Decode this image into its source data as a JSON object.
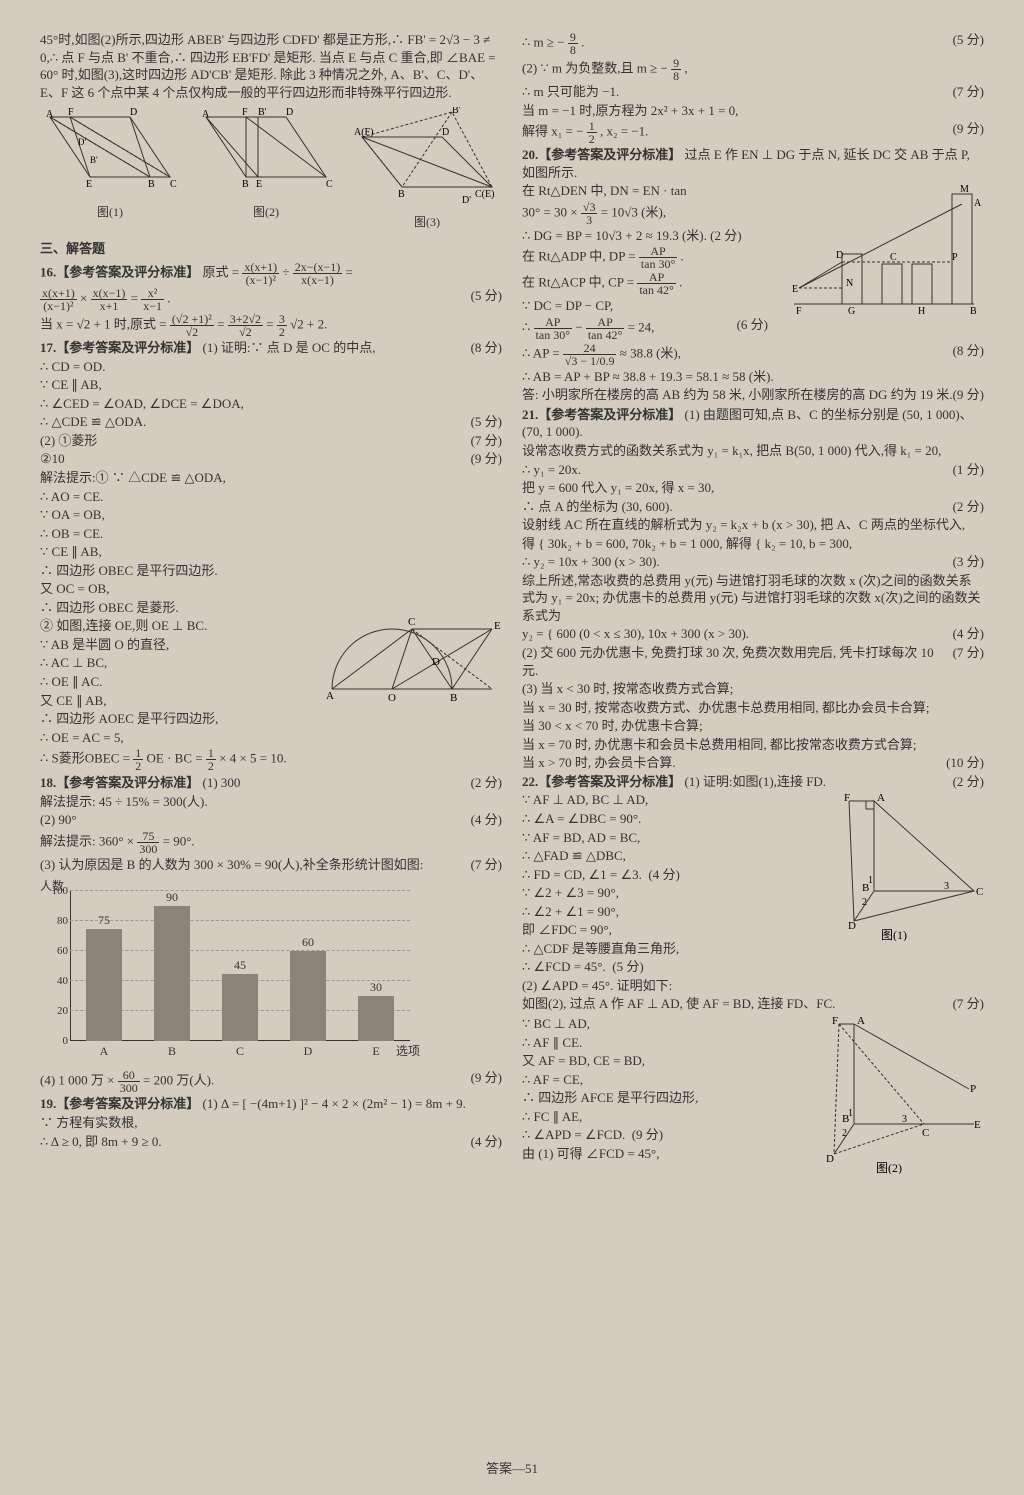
{
  "footer": "答案—51",
  "left": {
    "intro": "45°时,如图(2)所示,四边形 ABEB' 与四边形 CDFD' 都是正方形,∴ FB' = 2√3 − 3 ≠ 0,∴ 点 F 与点 B' 不重合,∴ 四边形 EB'FD' 是矩形. 当点 E 与点 C 重合,即 ∠BAE = 60° 时,如图(3),这时四边形 AD'CB' 是矩形. 除此 3 种情况之外, A、B'、C、D'、E、F 这 6 个点中某 4 个点仅构成一般的平行四边形而非特殊平行四边形.",
    "figs": {
      "a": "图(1)",
      "b": "图(2)",
      "c": "图(3)"
    },
    "fig_points": {
      "f1": [
        "A",
        "F",
        "D",
        "E",
        "B",
        "C",
        "B'",
        "D'"
      ],
      "f2": [
        "A",
        "F",
        "B'",
        "D",
        "E",
        "B",
        "C"
      ],
      "f3": [
        "A(F)",
        "B'",
        "D",
        "B",
        "C(E)",
        "D'"
      ]
    },
    "section3": "三、解答题",
    "q16": {
      "head": "16.【参考答案及评分标准】",
      "l1a": "原式 =",
      "f1n": "x(x+1)",
      "f1d": "(x−1)²",
      "l1b": "÷",
      "f2n": "2x−(x−1)",
      "f2d": "x(x−1)",
      "l1c": "=",
      "l2a": "",
      "f3n": "x(x+1)",
      "f3d": "(x−1)²",
      "l2b": "×",
      "f4n": "x(x−1)",
      "f4d": "x+1",
      "l2c": "=",
      "f5n": "x²",
      "f5d": "x−1",
      "l2d": ".",
      "s1": "(5 分)",
      "l3a": "当 x = √2 + 1 时,原式 =",
      "f6n": "(√2 +1)²",
      "f6d": "√2",
      "l3b": "=",
      "f7n": "3+2√2",
      "f7d": "√2",
      "l3c": "=",
      "f8n": "3",
      "f8d": "2",
      "l3d": "√2 + 2.",
      "s2": "(8 分)"
    },
    "q17": {
      "head": "17.【参考答案及评分标准】",
      "l1": " (1) 证明:∵ 点 D 是 OC 的中点,",
      "l2": "∴ CD = OD.",
      "l3": "∵ CE ∥ AB,",
      "l4": "∴ ∠CED = ∠OAD, ∠DCE = ∠DOA,",
      "l5": "∴ △CDE ≌ △ODA.",
      "s5": "(5 分)",
      "l6": "(2) ①菱形",
      "s6": "(7 分)",
      "l7": "②10",
      "s7": "(9 分)",
      "l8": "解法提示:① ∵ △CDE ≌ △ODA,",
      "l9": "∴ AO = CE.",
      "l10": "∵ OA = OB,",
      "l11": "∴ OB = CE.",
      "l12": "∵ CE ∥ AB,",
      "l13": "∴ 四边形 OBEC 是平行四边形.",
      "l14": "又 OC = OB,",
      "l15": "∴ 四边形 OBEC 是菱形.",
      "l16": "② 如图,连接 OE,则 OE ⊥ BC.",
      "l17": "∵ AB 是半圆 O 的直径,",
      "l18": "∴ AC ⊥ BC,",
      "l19": "∴ OE ∥ AC.",
      "l20": "又 CE ∥ AB,",
      "l21": "∴ 四边形 AOEC 是平行四边形,",
      "l22": "∴ OE = AC = 5,",
      "l23a": "∴ S菱形OBEC =",
      "f1n": "1",
      "f1d": "2",
      "l23b": "OE · BC =",
      "f2n": "1",
      "f2d": "2",
      "l23c": "× 4 × 5 = 10.",
      "fig_pts": [
        "A",
        "O",
        "B",
        "C",
        "D",
        "E"
      ]
    },
    "q18": {
      "head": "18.【参考答案及评分标准】",
      "l1": " (1) 300",
      "s1": "(2 分)",
      "l2": "解法提示: 45 ÷ 15% = 300(人).",
      "l3": "(2) 90°",
      "s3": "(4 分)",
      "l4a": "解法提示: 360° ×",
      "f1n": "75",
      "f1d": "300",
      "l4b": "= 90°.",
      "l5": "(3) 认为原因是 B 的人数为 300 × 30% = 90(人),补全条形统计图如图:",
      "s5": "(7 分)",
      "chart": {
        "ylabel": "人数",
        "xlabel": "选项",
        "yticks": [
          0,
          20,
          40,
          60,
          80,
          100
        ],
        "ymax": 100,
        "categories": [
          "A",
          "B",
          "C",
          "D",
          "E"
        ],
        "values": [
          75,
          90,
          45,
          60,
          30
        ],
        "bar_color": "#8a8578",
        "grid_color": "#999999"
      },
      "l6a": "(4) 1 000 万 ×",
      "f4n": "60",
      "f4d": "300",
      "l6b": "= 200 万(人).",
      "s6": "(9 分)"
    },
    "q19": {
      "head": "19.【参考答案及评分标准】",
      "l1": " (1) Δ = [ −(4m+1) ]² − 4 × 2 × (2m² − 1) = 8m + 9.",
      "l2": "∵ 方程有实数根,",
      "l3": "∴ Δ ≥ 0, 即 8m + 9 ≥ 0.",
      "s3": "(4 分)"
    }
  },
  "right": {
    "r1a": "∴ m ≥ −",
    "f1n": "9",
    "f1d": "8",
    "r1b": ".",
    "s1": "(5 分)",
    "r2a": "(2) ∵ m 为负整数,且 m ≥ −",
    "f2n": "9",
    "f2d": "8",
    "r2b": ",",
    "r3": "∴ m 只可能为 −1.",
    "s3": "(7 分)",
    "r4": "当 m = −1 时,原方程为 2x² + 3x + 1 = 0,",
    "r5a": "解得 x₁ = −",
    "f5n": "1",
    "f5d": "2",
    "r5b": ", x₂ = −1.",
    "s5": "(9 分)",
    "q20": {
      "head": "20.【参考答案及评分标准】",
      "l1": " 过点 E 作 EN ⊥ DG 于点 N, 延长 DC 交 AB 于点 P, 如图所示.",
      "l2": "在 Rt△DEN 中, DN = EN · tan",
      "l3a": "30° = 30 ×",
      "f3n": "√3",
      "f3d": "3",
      "l3b": " = 10√3 (米),",
      "l4": "∴ DG = BP = 10√3 + 2 ≈ 19.3 (米).",
      "s4": "(2 分)",
      "l5a": "在 Rt△ADP 中, DP =",
      "f5n": "AP",
      "f5d": "tan 30°",
      "l5b": ".",
      "l6a": "在 Rt△ACP 中, CP =",
      "f6n": "AP",
      "f6d": "tan 42°",
      "l6b": ".",
      "l7": "∵ DC = DP − CP,",
      "l8a": "∴",
      "f8an": "AP",
      "f8ad": "tan 30°",
      "l8b": " − ",
      "f8bn": "AP",
      "f8bd": "tan 42°",
      "l8c": " = 24,",
      "s8": "(6 分)",
      "l9a": "∴ AP =",
      "f9n": "24",
      "f9d": "√3 − 1/0.9",
      "l9b": " ≈ 38.8 (米),",
      "s9": "(8 分)",
      "l10": "∴ AB = AP + BP ≈ 38.8 + 19.3 = 58.1 ≈ 58 (米).",
      "l11": "答: 小明家所在楼房的高 AB 约为 58 米, 小刚家所在楼房的高 DG 约为 19 米.",
      "s11": "(9 分)",
      "fig_pts": [
        "M",
        "A",
        "D",
        "C",
        "P",
        "E",
        "N",
        "F",
        "G",
        "H",
        "B"
      ]
    },
    "q21": {
      "head": "21.【参考答案及评分标准】",
      "l1": " (1) 由题图可知,点 B、C 的坐标分别是 (50, 1 000)、(70, 1 000).",
      "l2": "设常态收费方式的函数关系式为 y₁ = k₁x, 把点 B(50, 1 000) 代入,得 k₁ = 20,",
      "l3": "∴ y₁ = 20x.",
      "s3": "(1 分)",
      "l4": "把 y = 600 代入 y₁ = 20x, 得 x = 30,",
      "l5": "∴ 点 A 的坐标为 (30, 600).",
      "s5": "(2 分)",
      "l6": "设射线 AC 所在直线的解析式为 y₂ = k₂x + b (x > 30), 把 A、C 两点的坐标代入,",
      "l7": "得 { 30k₂ + b = 600, 70k₂ + b = 1 000,  解得 { k₂ = 10, b = 300,",
      "l8": "∴ y₂ = 10x + 300 (x > 30).",
      "s8": "(3 分)",
      "l9": "综上所述,常态收费的总费用 y(元) 与进馆打羽毛球的次数 x (次)之间的函数关系式为 y₁ = 20x; 办优惠卡的总费用 y(元) 与进馆打羽毛球的次数 x(次)之间的函数关系式为",
      "l10": "y₂ = { 600 (0 < x ≤ 30), 10x + 300 (x > 30).",
      "s10": "(4 分)",
      "l11": "(2) 交 600 元办优惠卡, 免费打球 30 次, 免费次数用完后, 凭卡打球每次 10 元.",
      "s11": "(7 分)",
      "l12": "(3) 当 x < 30 时, 按常态收费方式合算;",
      "l13": "当 x = 30 时, 按常态收费方式、办优惠卡总费用相同, 都比办会员卡合算;",
      "l14": "当 30 < x < 70 时, 办优惠卡合算;",
      "l15": "当 x = 70 时, 办优惠卡和会员卡总费用相同, 都比按常态收费方式合算;",
      "l16": "当 x > 70 时, 办会员卡合算.",
      "s16": "(10 分)"
    },
    "q22": {
      "head": "22.【参考答案及评分标准】",
      "l1": " (1) 证明:如图(1),连接 FD.",
      "s1": "(2 分)",
      "l2": "∵ AF ⊥ AD, BC ⊥ AD,",
      "l3": "∴ ∠A = ∠DBC = 90°.",
      "l4": "∵ AF = BD, AD = BC,",
      "l5": "∴ △FAD ≌ △DBC,",
      "l6": "∴ FD = CD, ∠1 = ∠3.",
      "s6": "(4 分)",
      "l7": "∵ ∠2 + ∠3 = 90°,",
      "l8": "∴ ∠2 + ∠1 = 90°,",
      "l9": "即 ∠FDC = 90°,",
      "l10": "∴ △CDF 是等腰直角三角形,",
      "l11": "∴ ∠FCD = 45°.",
      "s11": "(5 分)",
      "fig1": "图(1)",
      "l12": "(2) ∠APD = 45°. 证明如下:",
      "l13": "如图(2), 过点 A 作 AF ⊥ AD, 使 AF = BD, 连接 FD、FC.",
      "s13": "(7 分)",
      "l14": "∵ BC ⊥ AD,",
      "l15": "∴ AF ∥ CE.",
      "l16": "又 AF = BD, CE = BD,",
      "l17": "∴ AF = CE,",
      "l18": "∴ 四边形 AFCE 是平行四边形,",
      "l19": "∴ FC ∥ AE,",
      "l20": "∴ ∠APD = ∠FCD.",
      "s20": "(9 分)",
      "l21": "由 (1) 可得 ∠FCD = 45°,",
      "fig2": "图(2)",
      "fig1_pts": [
        "F",
        "A",
        "B",
        "C",
        "D",
        "1",
        "2",
        "3"
      ],
      "fig2_pts": [
        "F",
        "A",
        "P",
        "B",
        "C",
        "E",
        "D",
        "1",
        "2",
        "3"
      ]
    }
  }
}
